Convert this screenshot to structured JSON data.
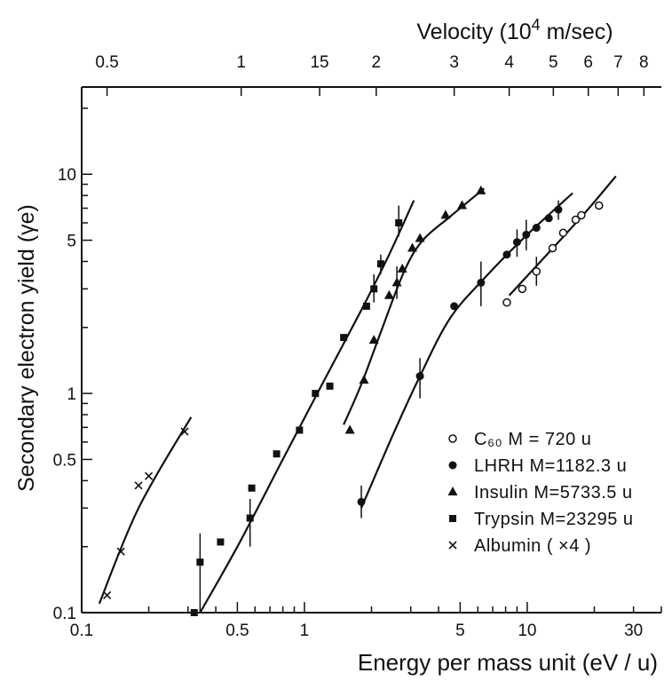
{
  "chart_data": {
    "type": "scatter",
    "title": "",
    "xlabel": "Energy per mass unit (eV / u)",
    "ylabel": "Secondary electron yield (γe)",
    "top_axis_label": "Velocity (10⁴ m/sec)",
    "xscale": "log",
    "yscale": "log",
    "xlim": [
      0.1,
      40
    ],
    "ylim": [
      0.1,
      25
    ],
    "x_ticks": [
      {
        "value": 0.1,
        "label": "0.1"
      },
      {
        "value": 0.5,
        "label": "0.5"
      },
      {
        "value": 1,
        "label": "1"
      },
      {
        "value": 5,
        "label": "5"
      },
      {
        "value": 10,
        "label": "10"
      },
      {
        "value": 30,
        "label": "30"
      }
    ],
    "y_ticks": [
      {
        "value": 0.1,
        "label": "0.1"
      },
      {
        "value": 0.5,
        "label": "0.5"
      },
      {
        "value": 1,
        "label": "1"
      },
      {
        "value": 5,
        "label": "5"
      },
      {
        "value": 10,
        "label": "10"
      }
    ],
    "top_ticks": [
      {
        "energy": 0.13,
        "label": "0.5"
      },
      {
        "energy": 0.52,
        "label": "1"
      },
      {
        "energy": 1.17,
        "label": "15"
      },
      {
        "energy": 2.1,
        "label": "2"
      },
      {
        "energy": 4.7,
        "label": "3"
      },
      {
        "energy": 8.3,
        "label": "4"
      },
      {
        "energy": 13.1,
        "label": "5"
      },
      {
        "energy": 18.8,
        "label": "6"
      },
      {
        "energy": 25.6,
        "label": "7"
      },
      {
        "energy": 33.4,
        "label": "8"
      }
    ],
    "legend": {
      "position": "lower-right",
      "entries": [
        {
          "marker": "open-circle",
          "label": "C₆₀  M = 720 u"
        },
        {
          "marker": "filled-circle",
          "label": "LHRH  M=1182.3 u"
        },
        {
          "marker": "triangle",
          "label": "Insulin  M=5733.5 u"
        },
        {
          "marker": "square",
          "label": "Trypsin  M=23295 u"
        },
        {
          "marker": "cross",
          "label": "Albumin   ( ×4 )"
        }
      ]
    },
    "series": [
      {
        "marker": "open-circle",
        "points": [
          [
            8.1,
            2.6
          ],
          [
            9.5,
            3.0
          ],
          [
            11.0,
            3.6
          ],
          [
            13.0,
            4.6
          ],
          [
            14.5,
            5.4
          ],
          [
            16.5,
            6.2
          ],
          [
            17.5,
            6.5
          ],
          [
            21.0,
            7.2
          ]
        ],
        "error_x": [
          [
            11.0,
            3.1,
            4.2
          ]
        ],
        "fit": [
          [
            8.3,
            2.8
          ],
          [
            12,
            4.2
          ],
          [
            18,
            6.6
          ],
          [
            25,
            9.8
          ]
        ]
      },
      {
        "marker": "filled-circle",
        "points": [
          [
            1.8,
            0.32
          ],
          [
            3.3,
            1.2
          ],
          [
            4.7,
            2.5
          ],
          [
            6.2,
            3.2
          ],
          [
            8.1,
            4.3
          ],
          [
            9.0,
            4.9
          ],
          [
            9.9,
            5.3
          ],
          [
            11.0,
            5.7
          ],
          [
            12.5,
            6.3
          ],
          [
            13.8,
            6.9
          ]
        ],
        "error_x": [
          [
            1.8,
            0.27,
            0.38
          ],
          [
            3.3,
            0.95,
            1.45
          ],
          [
            6.2,
            2.5,
            4.0
          ],
          [
            9.0,
            4.2,
            5.6
          ],
          [
            9.9,
            4.5,
            6.2
          ],
          [
            13.8,
            6.2,
            7.6
          ]
        ],
        "fit": [
          [
            1.8,
            0.3
          ],
          [
            2.5,
            0.65
          ],
          [
            3.3,
            1.2
          ],
          [
            4.5,
            2.2
          ],
          [
            6.5,
            3.4
          ],
          [
            10,
            5.3
          ],
          [
            16,
            8.2
          ]
        ]
      },
      {
        "marker": "triangle",
        "points": [
          [
            1.6,
            0.68
          ],
          [
            1.85,
            1.15
          ],
          [
            2.05,
            1.75
          ],
          [
            2.4,
            2.8
          ],
          [
            2.6,
            3.2
          ],
          [
            2.75,
            3.7
          ],
          [
            3.05,
            4.6
          ],
          [
            3.3,
            5.1
          ],
          [
            4.3,
            6.5
          ],
          [
            5.1,
            7.2
          ],
          [
            6.2,
            8.4
          ]
        ],
        "error_x": [
          [
            2.6,
            2.7,
            3.8
          ]
        ],
        "fit": [
          [
            1.5,
            0.72
          ],
          [
            1.8,
            1.1
          ],
          [
            2.2,
            1.9
          ],
          [
            2.8,
            3.6
          ],
          [
            3.4,
            5.0
          ],
          [
            4.5,
            6.4
          ],
          [
            6.4,
            8.6
          ]
        ]
      },
      {
        "marker": "square",
        "points": [
          [
            0.32,
            0.1
          ],
          [
            0.34,
            0.17
          ],
          [
            0.42,
            0.21
          ],
          [
            0.57,
            0.27
          ],
          [
            0.58,
            0.37
          ],
          [
            0.75,
            0.53
          ],
          [
            0.95,
            0.68
          ],
          [
            1.12,
            1.0
          ],
          [
            1.3,
            1.08
          ],
          [
            1.5,
            1.8
          ],
          [
            1.9,
            2.5
          ],
          [
            2.05,
            3.0
          ],
          [
            2.2,
            3.9
          ],
          [
            2.65,
            6.0
          ]
        ],
        "error_x": [
          [
            0.34,
            0.1,
            0.23
          ],
          [
            0.57,
            0.2,
            0.33
          ],
          [
            2.05,
            2.6,
            3.5
          ],
          [
            2.2,
            3.5,
            4.3
          ],
          [
            2.65,
            5.2,
            7.2
          ]
        ],
        "fit": [
          [
            0.34,
            0.1
          ],
          [
            0.5,
            0.2
          ],
          [
            0.8,
            0.5
          ],
          [
            1.2,
            1.1
          ],
          [
            1.8,
            2.4
          ],
          [
            2.4,
            4.3
          ],
          [
            3.1,
            7.6
          ]
        ]
      },
      {
        "marker": "cross",
        "points": [
          [
            0.13,
            0.12
          ],
          [
            0.15,
            0.19
          ],
          [
            0.18,
            0.38
          ],
          [
            0.2,
            0.42
          ],
          [
            0.29,
            0.67
          ]
        ],
        "fit": [
          [
            0.12,
            0.11
          ],
          [
            0.18,
            0.3
          ],
          [
            0.31,
            0.78
          ]
        ]
      }
    ]
  }
}
